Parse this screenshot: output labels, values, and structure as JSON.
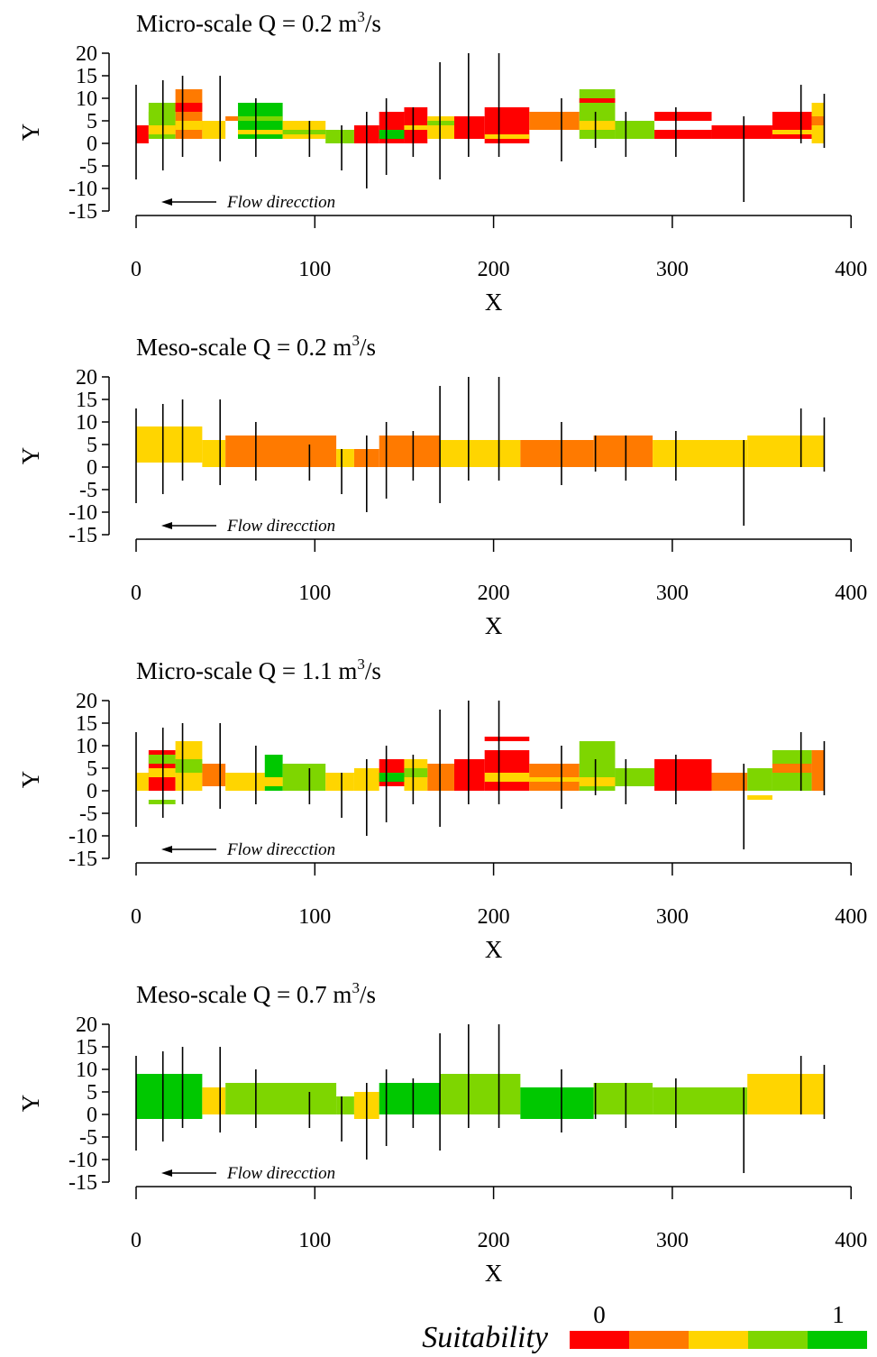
{
  "colors": {
    "scale": [
      "#ff0000",
      "#ff7a00",
      "#ffd500",
      "#7ed600",
      "#00c800"
    ],
    "stick": "#000000"
  },
  "chart_data": [
    {
      "type": "bar",
      "title_prefix": "Micro-scale Q = 0.2   m",
      "title_sup": "3",
      "title_suffix": "/s",
      "xlabel": "X",
      "ylabel": "Y",
      "xlim": [
        0,
        400
      ],
      "ylim": [
        -15,
        20
      ],
      "xticks": [
        0,
        100,
        200,
        300,
        400
      ],
      "yticks": [
        20,
        15,
        10,
        5,
        0,
        -5,
        -10,
        -15
      ],
      "annotation": "Flow direcction",
      "sticks": [
        [
          0,
          -8,
          13
        ],
        [
          15,
          -6,
          14
        ],
        [
          26,
          -3,
          15
        ],
        [
          47,
          -4,
          15
        ],
        [
          67,
          -3,
          10
        ],
        [
          97,
          -3,
          5
        ],
        [
          115,
          -6,
          4
        ],
        [
          129,
          -10,
          7
        ],
        [
          140,
          -7,
          10
        ],
        [
          155,
          -3,
          8
        ],
        [
          170,
          -8,
          18
        ],
        [
          186,
          -3,
          20
        ],
        [
          203,
          -3,
          20
        ],
        [
          238,
          -4,
          10
        ],
        [
          257,
          -1,
          7
        ],
        [
          274,
          -3,
          7
        ],
        [
          302,
          -3,
          8
        ],
        [
          340,
          -13,
          6
        ],
        [
          372,
          0,
          13
        ],
        [
          385,
          -1,
          11
        ]
      ],
      "cells": [
        [
          0,
          7,
          0,
          4,
          0
        ],
        [
          7,
          22,
          1,
          9,
          3
        ],
        [
          22,
          37,
          1,
          12,
          1
        ],
        [
          37,
          50,
          1,
          5,
          2
        ],
        [
          50,
          57,
          5,
          6,
          1
        ],
        [
          57,
          82,
          1,
          9,
          4
        ],
        [
          82,
          106,
          1,
          5,
          2
        ],
        [
          106,
          122,
          0,
          3,
          3
        ],
        [
          122,
          136,
          0,
          4,
          0
        ],
        [
          136,
          150,
          0,
          7,
          0
        ],
        [
          150,
          163,
          0,
          8,
          0
        ],
        [
          163,
          178,
          1,
          6,
          2
        ],
        [
          178,
          195,
          1,
          6,
          0
        ],
        [
          195,
          220,
          0,
          8,
          0
        ],
        [
          220,
          248,
          3,
          7,
          1
        ],
        [
          248,
          268,
          1,
          12,
          3
        ],
        [
          268,
          290,
          1,
          5,
          3
        ],
        [
          290,
          322,
          5,
          7,
          0
        ],
        [
          290,
          322,
          1,
          3,
          0
        ],
        [
          322,
          356,
          1,
          4,
          0
        ],
        [
          356,
          378,
          1,
          7,
          0
        ],
        [
          378,
          385,
          0,
          9,
          2
        ],
        [
          7,
          22,
          2,
          4,
          2
        ],
        [
          7,
          22,
          5,
          7,
          3
        ],
        [
          22,
          37,
          3,
          5,
          2
        ],
        [
          22,
          37,
          7,
          9,
          0
        ],
        [
          57,
          82,
          2,
          3,
          2
        ],
        [
          57,
          82,
          5,
          6,
          3
        ],
        [
          82,
          106,
          2,
          3,
          3
        ],
        [
          150,
          163,
          3,
          4,
          2
        ],
        [
          163,
          178,
          4,
          5,
          3
        ],
        [
          195,
          220,
          1,
          2,
          2
        ],
        [
          248,
          268,
          3,
          5,
          2
        ],
        [
          248,
          268,
          9,
          10,
          0
        ],
        [
          356,
          378,
          2,
          3,
          2
        ],
        [
          378,
          385,
          4,
          6,
          1
        ],
        [
          136,
          150,
          1,
          3,
          4
        ]
      ]
    },
    {
      "type": "bar",
      "title_prefix": "Meso-scale Q = 0.2   m",
      "title_sup": "3",
      "title_suffix": "/s",
      "xlabel": "X",
      "ylabel": "Y",
      "xlim": [
        0,
        400
      ],
      "ylim": [
        -15,
        20
      ],
      "xticks": [
        0,
        100,
        200,
        300,
        400
      ],
      "yticks": [
        20,
        15,
        10,
        5,
        0,
        -5,
        -10,
        -15
      ],
      "annotation": "Flow direcction",
      "sticks": [
        [
          0,
          -8,
          13
        ],
        [
          15,
          -6,
          14
        ],
        [
          26,
          -3,
          15
        ],
        [
          47,
          -4,
          15
        ],
        [
          67,
          -3,
          10
        ],
        [
          97,
          -3,
          5
        ],
        [
          115,
          -6,
          4
        ],
        [
          129,
          -10,
          7
        ],
        [
          140,
          -7,
          10
        ],
        [
          155,
          -3,
          8
        ],
        [
          170,
          -8,
          18
        ],
        [
          186,
          -3,
          20
        ],
        [
          203,
          -3,
          20
        ],
        [
          238,
          -4,
          10
        ],
        [
          257,
          -1,
          7
        ],
        [
          274,
          -3,
          7
        ],
        [
          302,
          -3,
          8
        ],
        [
          340,
          -13,
          6
        ],
        [
          372,
          0,
          13
        ],
        [
          385,
          -1,
          11
        ]
      ],
      "cells": [
        [
          0,
          37,
          1,
          9,
          2
        ],
        [
          37,
          50,
          0,
          6,
          2
        ],
        [
          50,
          112,
          0,
          7,
          1
        ],
        [
          112,
          122,
          0,
          4,
          2
        ],
        [
          122,
          136,
          0,
          4,
          1
        ],
        [
          136,
          170,
          0,
          7,
          1
        ],
        [
          170,
          215,
          0,
          6,
          2
        ],
        [
          215,
          256,
          0,
          6,
          1
        ],
        [
          256,
          289,
          0,
          7,
          1
        ],
        [
          289,
          342,
          0,
          6,
          2
        ],
        [
          342,
          385,
          0,
          7,
          2
        ]
      ]
    },
    {
      "type": "bar",
      "title_prefix": "Micro-scale Q = 1.1   m",
      "title_sup": "3",
      "title_suffix": "/s",
      "xlabel": "X",
      "ylabel": "Y",
      "xlim": [
        0,
        400
      ],
      "ylim": [
        -15,
        20
      ],
      "xticks": [
        0,
        100,
        200,
        300,
        400
      ],
      "yticks": [
        20,
        15,
        10,
        5,
        0,
        -5,
        -10,
        -15
      ],
      "annotation": "Flow direcction",
      "sticks": [
        [
          0,
          -8,
          13
        ],
        [
          15,
          -6,
          14
        ],
        [
          26,
          -3,
          15
        ],
        [
          47,
          -4,
          15
        ],
        [
          67,
          -3,
          10
        ],
        [
          97,
          -3,
          5
        ],
        [
          115,
          -6,
          4
        ],
        [
          129,
          -10,
          7
        ],
        [
          140,
          -7,
          10
        ],
        [
          155,
          -3,
          8
        ],
        [
          170,
          -8,
          18
        ],
        [
          186,
          -3,
          20
        ],
        [
          203,
          -3,
          20
        ],
        [
          238,
          -4,
          10
        ],
        [
          257,
          -1,
          7
        ],
        [
          274,
          -3,
          7
        ],
        [
          302,
          -3,
          8
        ],
        [
          340,
          -13,
          6
        ],
        [
          372,
          0,
          13
        ],
        [
          385,
          -1,
          11
        ]
      ],
      "cells": [
        [
          0,
          7,
          0,
          4,
          2
        ],
        [
          7,
          22,
          0,
          9,
          0
        ],
        [
          22,
          37,
          0,
          11,
          2
        ],
        [
          37,
          50,
          1,
          6,
          1
        ],
        [
          50,
          72,
          0,
          4,
          2
        ],
        [
          72,
          82,
          0,
          8,
          4
        ],
        [
          82,
          106,
          0,
          6,
          3
        ],
        [
          106,
          122,
          0,
          4,
          2
        ],
        [
          122,
          136,
          0,
          5,
          2
        ],
        [
          136,
          150,
          1,
          7,
          0
        ],
        [
          150,
          163,
          0,
          7,
          2
        ],
        [
          163,
          178,
          0,
          6,
          1
        ],
        [
          178,
          195,
          0,
          7,
          0
        ],
        [
          195,
          220,
          0,
          9,
          0
        ],
        [
          220,
          248,
          0,
          6,
          1
        ],
        [
          248,
          268,
          0,
          11,
          3
        ],
        [
          268,
          290,
          1,
          5,
          3
        ],
        [
          290,
          322,
          0,
          7,
          0
        ],
        [
          322,
          342,
          0,
          4,
          1
        ],
        [
          342,
          356,
          0,
          5,
          3
        ],
        [
          356,
          378,
          0,
          9,
          3
        ],
        [
          378,
          385,
          0,
          9,
          1
        ],
        [
          7,
          22,
          3,
          5,
          2
        ],
        [
          7,
          22,
          6,
          8,
          3
        ],
        [
          22,
          37,
          4,
          7,
          3
        ],
        [
          57,
          82,
          1,
          3,
          2
        ],
        [
          136,
          150,
          2,
          4,
          4
        ],
        [
          150,
          163,
          3,
          5,
          3
        ],
        [
          195,
          220,
          2,
          4,
          2
        ],
        [
          195,
          220,
          11,
          12,
          0
        ],
        [
          248,
          268,
          1,
          3,
          2
        ],
        [
          342,
          356,
          -2,
          -1,
          2
        ],
        [
          7,
          22,
          -3,
          -2,
          3
        ],
        [
          356,
          378,
          4,
          6,
          1
        ],
        [
          220,
          248,
          2,
          3,
          2
        ]
      ]
    },
    {
      "type": "bar",
      "title_prefix": "Meso-scale Q = 0.7   m",
      "title_sup": "3",
      "title_suffix": "/s",
      "xlabel": "X",
      "ylabel": "Y",
      "xlim": [
        0,
        400
      ],
      "ylim": [
        -15,
        20
      ],
      "xticks": [
        0,
        100,
        200,
        300,
        400
      ],
      "yticks": [
        20,
        15,
        10,
        5,
        0,
        -5,
        -10,
        -15
      ],
      "annotation": "Flow direcction",
      "sticks": [
        [
          0,
          -8,
          13
        ],
        [
          15,
          -6,
          14
        ],
        [
          26,
          -3,
          15
        ],
        [
          47,
          -4,
          15
        ],
        [
          67,
          -3,
          10
        ],
        [
          97,
          -3,
          5
        ],
        [
          115,
          -6,
          4
        ],
        [
          129,
          -10,
          7
        ],
        [
          140,
          -7,
          10
        ],
        [
          155,
          -3,
          8
        ],
        [
          170,
          -8,
          18
        ],
        [
          186,
          -3,
          20
        ],
        [
          203,
          -3,
          20
        ],
        [
          238,
          -4,
          10
        ],
        [
          257,
          -1,
          7
        ],
        [
          274,
          -3,
          7
        ],
        [
          302,
          -3,
          8
        ],
        [
          340,
          -13,
          6
        ],
        [
          372,
          0,
          13
        ],
        [
          385,
          -1,
          11
        ]
      ],
      "cells": [
        [
          0,
          37,
          -1,
          9,
          4
        ],
        [
          37,
          50,
          0,
          6,
          2
        ],
        [
          50,
          112,
          0,
          7,
          3
        ],
        [
          112,
          122,
          0,
          4,
          3
        ],
        [
          122,
          136,
          -1,
          5,
          2
        ],
        [
          136,
          170,
          0,
          7,
          4
        ],
        [
          170,
          215,
          0,
          9,
          3
        ],
        [
          215,
          256,
          -1,
          6,
          4
        ],
        [
          256,
          289,
          0,
          7,
          3
        ],
        [
          289,
          342,
          0,
          6,
          3
        ],
        [
          342,
          385,
          0,
          9,
          2
        ]
      ]
    }
  ],
  "legend": {
    "title": "Suitability",
    "min_label": "0",
    "max_label": "1"
  }
}
